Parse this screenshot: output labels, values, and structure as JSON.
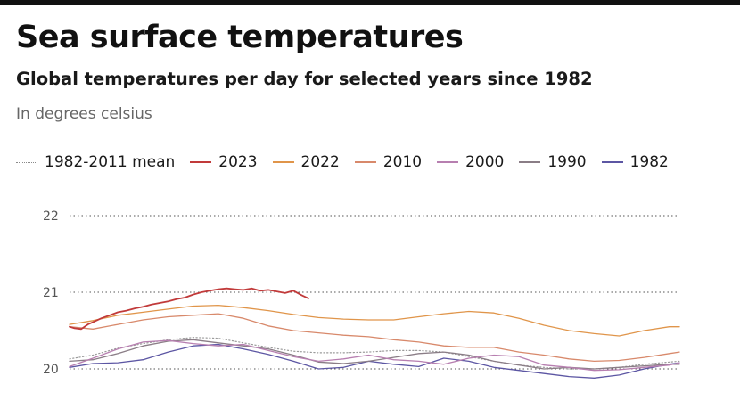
{
  "title": "Sea surface temperatures",
  "subtitle": "Global temperatures per day for selected years since 1982",
  "units": "In degrees celsius",
  "chart_data": {
    "type": "line",
    "title": "Sea surface temperatures",
    "subtitle": "Global temperatures per day for selected years since 1982",
    "ylabel": "In degrees celsius",
    "xlabel": "",
    "ylim": [
      20,
      22
    ],
    "yticks": [
      {
        "label": "22",
        "value": 22
      },
      {
        "label": "21",
        "value": 21
      },
      {
        "label": "20",
        "value": 20
      }
    ],
    "x_domain": [
      1,
      366
    ],
    "grid": "horizontal dotted",
    "legend_position": "top",
    "series": [
      {
        "name": "1982-2011 mean",
        "color": "#9a9a9a",
        "dash": "dotted",
        "x": [
          1,
          15,
          30,
          45,
          60,
          75,
          90,
          105,
          120,
          135,
          150,
          165,
          180,
          195,
          210,
          225,
          240,
          255,
          270,
          285,
          300,
          315,
          330,
          345,
          360,
          366
        ],
        "y": [
          20.13,
          20.18,
          20.27,
          20.33,
          20.38,
          20.41,
          20.4,
          20.34,
          20.28,
          20.23,
          20.21,
          20.21,
          20.22,
          20.24,
          20.24,
          20.22,
          20.16,
          20.1,
          20.05,
          20.02,
          20.0,
          20.0,
          20.02,
          20.06,
          20.09,
          20.1
        ]
      },
      {
        "name": "2023",
        "color": "#c13a3a",
        "x": [
          1,
          4,
          8,
          12,
          16,
          20,
          25,
          30,
          35,
          40,
          45,
          50,
          55,
          60,
          65,
          70,
          75,
          80,
          85,
          90,
          95,
          100,
          105,
          110,
          115,
          120,
          125,
          130,
          135,
          140,
          144
        ],
        "y": [
          20.55,
          20.53,
          20.52,
          20.58,
          20.62,
          20.66,
          20.7,
          20.74,
          20.76,
          20.79,
          20.81,
          20.84,
          20.86,
          20.88,
          20.91,
          20.93,
          20.97,
          21.0,
          21.02,
          21.04,
          21.05,
          21.04,
          21.03,
          21.05,
          21.02,
          21.03,
          21.01,
          20.99,
          21.02,
          20.96,
          20.92
        ]
      },
      {
        "name": "2022",
        "color": "#e0954a",
        "x": [
          1,
          15,
          30,
          45,
          60,
          75,
          90,
          105,
          120,
          135,
          150,
          165,
          180,
          195,
          210,
          225,
          240,
          255,
          270,
          285,
          300,
          315,
          330,
          345,
          360,
          366
        ],
        "y": [
          20.58,
          20.63,
          20.7,
          20.74,
          20.78,
          20.82,
          20.83,
          20.8,
          20.76,
          20.71,
          20.67,
          20.65,
          20.64,
          20.64,
          20.68,
          20.72,
          20.75,
          20.73,
          20.66,
          20.57,
          20.5,
          20.46,
          20.43,
          20.5,
          20.55,
          20.55
        ]
      },
      {
        "name": "2010",
        "color": "#d8896b",
        "x": [
          1,
          15,
          30,
          45,
          60,
          75,
          90,
          105,
          120,
          135,
          150,
          165,
          180,
          195,
          210,
          225,
          240,
          255,
          270,
          285,
          300,
          315,
          330,
          345,
          360,
          366
        ],
        "y": [
          20.55,
          20.52,
          20.58,
          20.64,
          20.68,
          20.7,
          20.72,
          20.66,
          20.56,
          20.5,
          20.47,
          20.44,
          20.42,
          20.38,
          20.35,
          20.3,
          20.28,
          20.28,
          20.22,
          20.18,
          20.13,
          20.1,
          20.11,
          20.15,
          20.2,
          20.22
        ]
      },
      {
        "name": "2000",
        "color": "#b77fb0",
        "x": [
          1,
          15,
          30,
          45,
          60,
          75,
          90,
          105,
          120,
          135,
          150,
          165,
          180,
          195,
          210,
          225,
          240,
          255,
          270,
          285,
          300,
          315,
          330,
          345,
          360,
          366
        ],
        "y": [
          20.03,
          20.14,
          20.26,
          20.35,
          20.37,
          20.33,
          20.3,
          20.32,
          20.24,
          20.16,
          20.1,
          20.13,
          20.18,
          20.12,
          20.1,
          20.06,
          20.14,
          20.18,
          20.16,
          20.05,
          20.02,
          19.98,
          19.99,
          20.02,
          20.05,
          20.08
        ]
      },
      {
        "name": "1990",
        "color": "#8a7d86",
        "x": [
          1,
          15,
          30,
          45,
          60,
          75,
          90,
          105,
          120,
          135,
          150,
          165,
          180,
          195,
          210,
          225,
          240,
          255,
          270,
          285,
          300,
          315,
          330,
          345,
          360,
          366
        ],
        "y": [
          20.1,
          20.12,
          20.2,
          20.3,
          20.36,
          20.38,
          20.34,
          20.3,
          20.26,
          20.18,
          20.09,
          20.07,
          20.1,
          20.15,
          20.2,
          20.22,
          20.18,
          20.1,
          20.05,
          20.0,
          20.02,
          20.0,
          20.02,
          20.04,
          20.06,
          20.06
        ]
      },
      {
        "name": "1982",
        "color": "#5c56a3",
        "x": [
          1,
          15,
          30,
          45,
          60,
          75,
          90,
          105,
          120,
          135,
          150,
          165,
          180,
          195,
          210,
          225,
          240,
          255,
          270,
          285,
          300,
          315,
          330,
          345,
          360,
          366
        ],
        "y": [
          20.02,
          20.07,
          20.08,
          20.12,
          20.22,
          20.3,
          20.32,
          20.26,
          20.19,
          20.1,
          20.0,
          20.02,
          20.1,
          20.06,
          20.03,
          20.14,
          20.1,
          20.02,
          19.98,
          19.94,
          19.9,
          19.88,
          19.92,
          20.0,
          20.06,
          20.08
        ]
      }
    ]
  }
}
